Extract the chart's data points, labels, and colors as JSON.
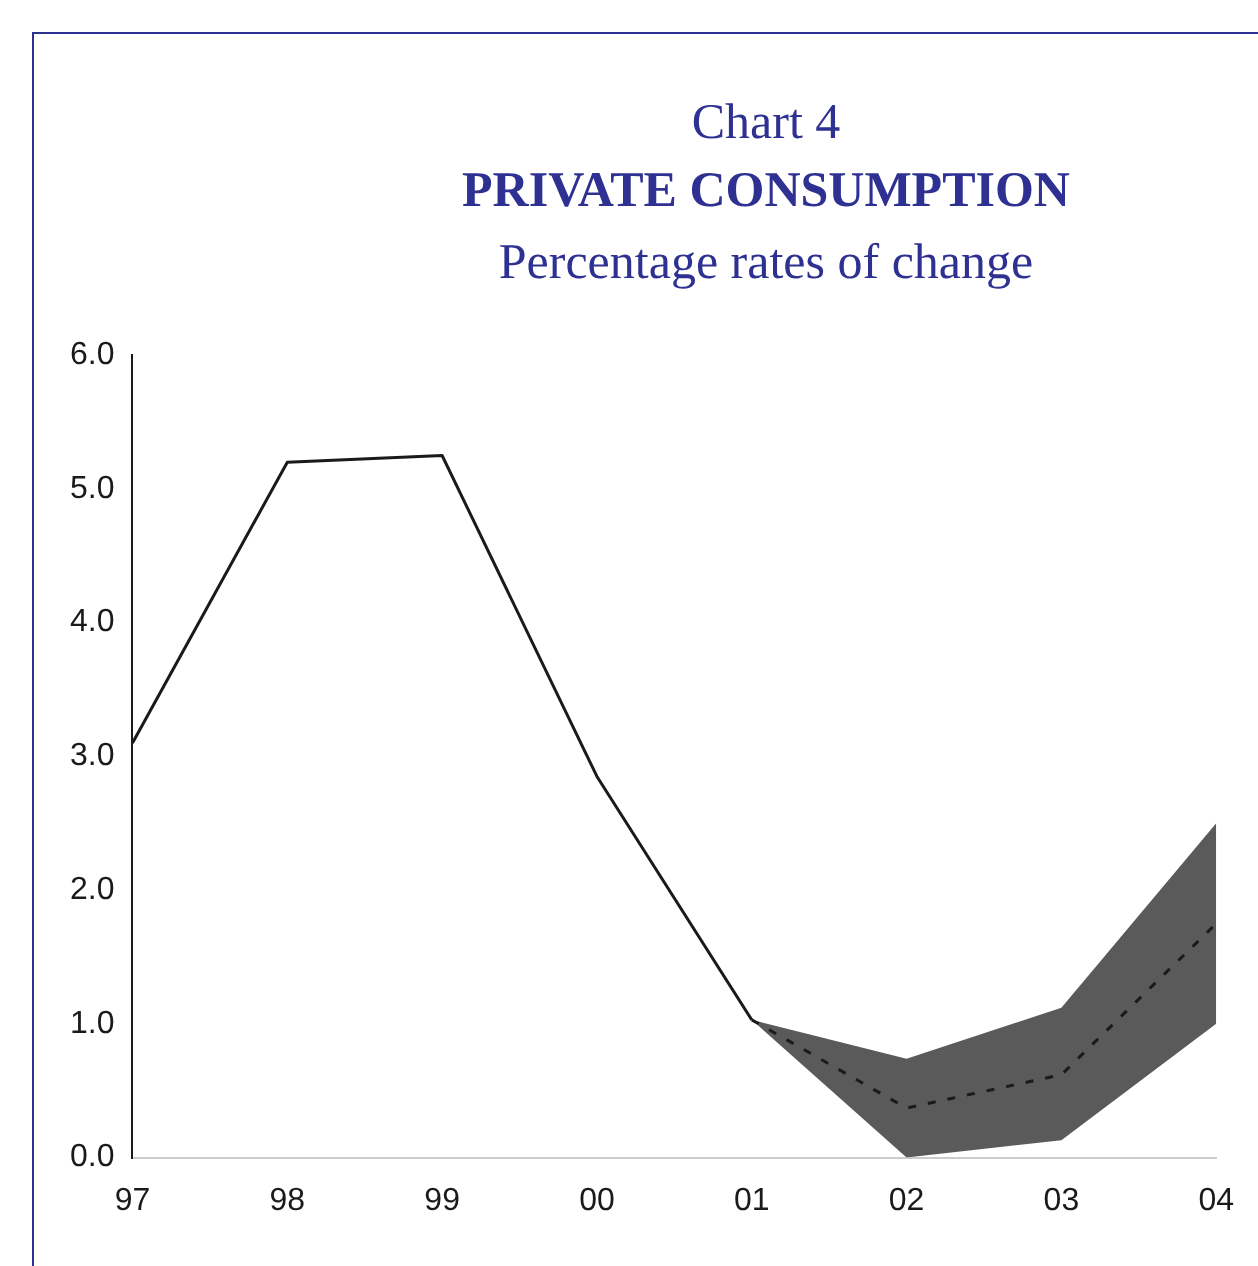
{
  "chart_data": {
    "type": "line",
    "annotations": [
      "Chart 4"
    ],
    "title": "PRIVATE CONSUMPTION",
    "subtitle": "Percentage rates of change",
    "categories": [
      "97",
      "98",
      "99",
      "00",
      "01",
      "02",
      "03",
      "04"
    ],
    "series": [
      {
        "color": "#1a1a1a",
        "line_style": "solid",
        "values": [
          3.1,
          5.2,
          5.25,
          2.85,
          1.03,
          null,
          null,
          null
        ]
      },
      {
        "color": "#1a1a1a",
        "line_style": "dashed",
        "values": [
          null,
          null,
          null,
          null,
          1.03,
          0.37,
          0.62,
          1.75
        ],
        "lower": [
          null,
          null,
          null,
          null,
          1.03,
          0.0,
          0.13,
          1.0
        ],
        "upper": [
          null,
          null,
          null,
          null,
          1.03,
          0.74,
          1.12,
          2.5
        ]
      }
    ],
    "ylim": [
      0,
      6
    ],
    "yticks": [
      {
        "value": 0,
        "label": "0.0"
      },
      {
        "value": 1,
        "label": "1.0"
      },
      {
        "value": 2,
        "label": "2.0"
      },
      {
        "value": 3,
        "label": "3.0"
      },
      {
        "value": 4,
        "label": "4.0"
      },
      {
        "value": 5,
        "label": "5.0"
      },
      {
        "value": 6,
        "label": "6.0"
      }
    ],
    "grid": false,
    "legend": false,
    "marker": "none"
  }
}
